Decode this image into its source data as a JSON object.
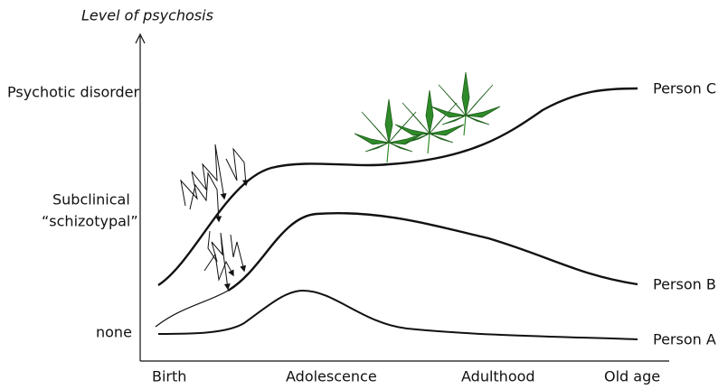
{
  "axis": {
    "y_title": "Level of psychosis",
    "y_levels": [
      "Psychotic disorder",
      "Subclinical",
      "“schizotypal”",
      "none"
    ],
    "x_stages": [
      "Birth",
      "Adolescence",
      "Adulthood",
      "Old age"
    ]
  },
  "curves": [
    {
      "label": "Person C"
    },
    {
      "label": "Person B"
    },
    {
      "label": "Person A"
    }
  ]
}
